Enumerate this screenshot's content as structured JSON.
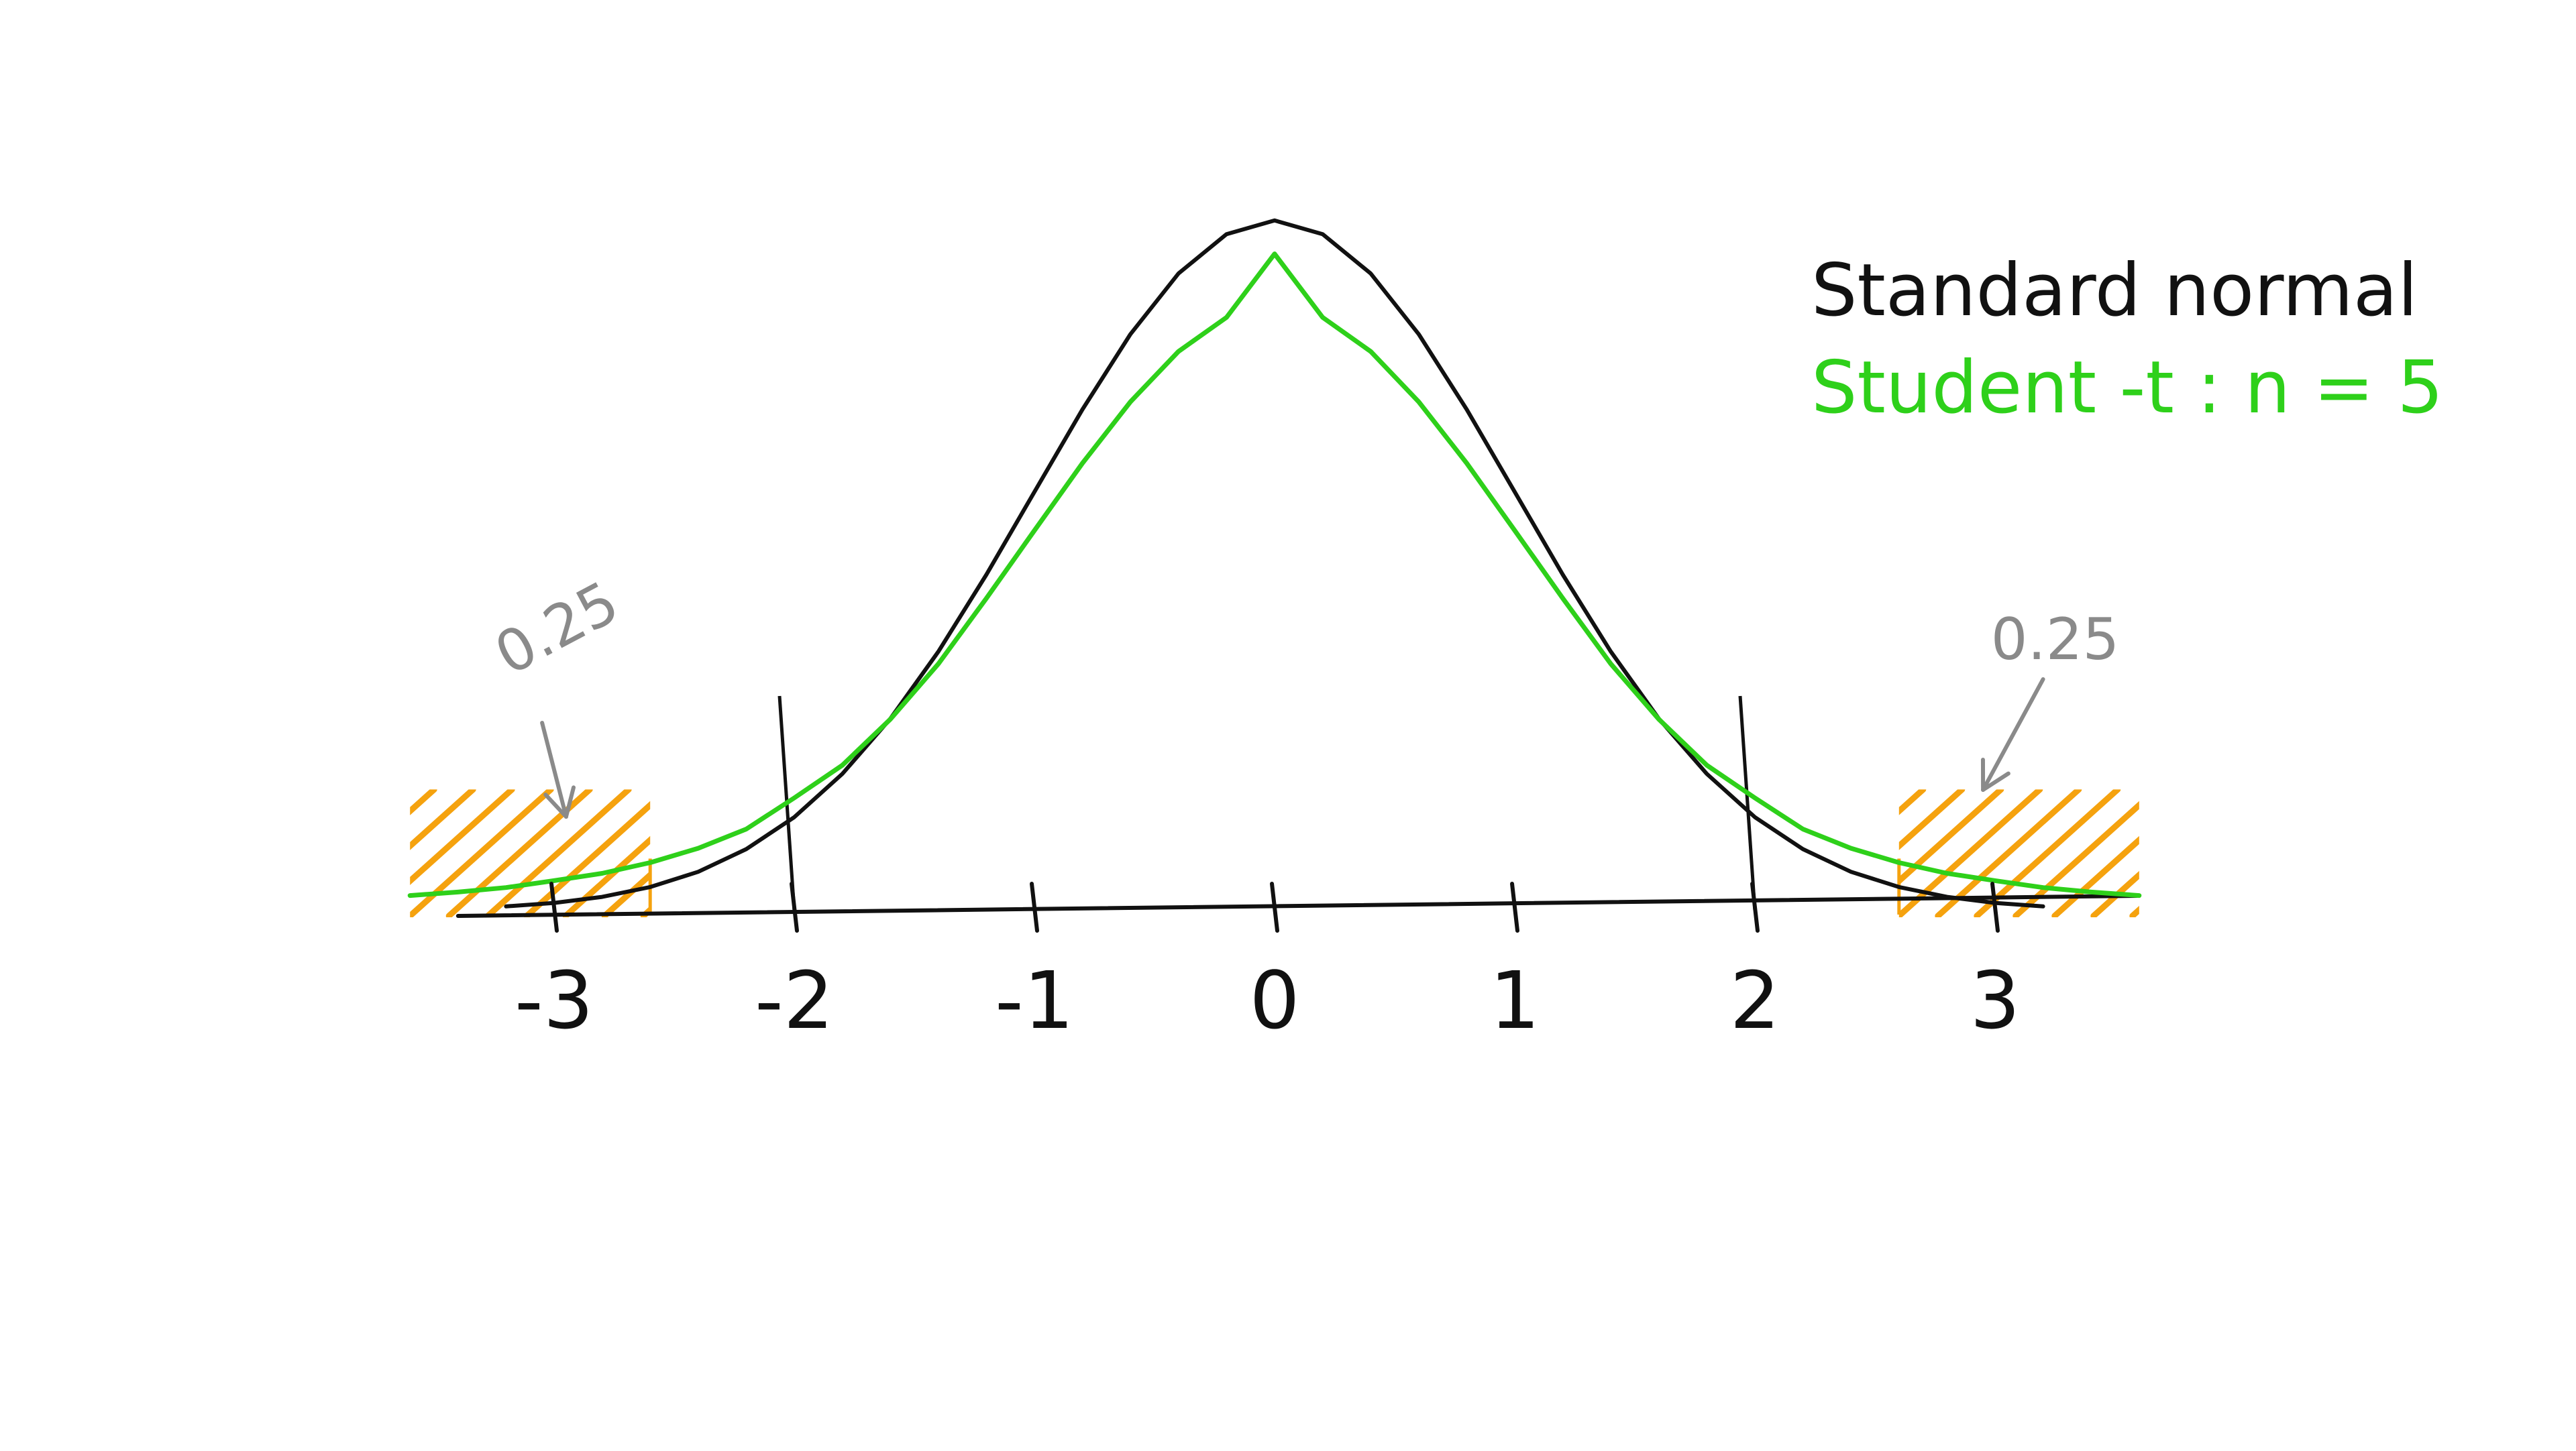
{
  "chart_data": {
    "type": "line",
    "title": "",
    "xlabel": "",
    "ylabel": "",
    "xlim": [
      -3.6,
      3.6
    ],
    "ylim": [
      0,
      0.42
    ],
    "grid": false,
    "legend_placement": "top-right",
    "x_ticks": [
      -3,
      -2,
      -1,
      0,
      1,
      2,
      3
    ],
    "x_tick_labels": [
      "-3",
      "-2",
      "-1",
      "0",
      "1",
      "2",
      "3"
    ],
    "series": [
      {
        "name": "Standard normal",
        "color": "#111111",
        "distribution": "standard normal",
        "x": [
          -3.2,
          -3.0,
          -2.8,
          -2.6,
          -2.4,
          -2.2,
          -2.0,
          -1.8,
          -1.6,
          -1.4,
          -1.2,
          -1.0,
          -0.8,
          -0.6,
          -0.4,
          -0.2,
          0.0,
          0.2,
          0.4,
          0.6,
          0.8,
          1.0,
          1.2,
          1.4,
          1.6,
          1.8,
          2.0,
          2.2,
          2.4,
          2.6,
          2.8,
          3.0,
          3.2
        ],
        "y": [
          0.0024,
          0.0044,
          0.0079,
          0.0136,
          0.0224,
          0.0355,
          0.054,
          0.079,
          0.1109,
          0.1497,
          0.1942,
          0.242,
          0.2897,
          0.3332,
          0.3683,
          0.391,
          0.3989,
          0.391,
          0.3683,
          0.3332,
          0.2897,
          0.242,
          0.1942,
          0.1497,
          0.1109,
          0.079,
          0.054,
          0.0355,
          0.0224,
          0.0136,
          0.0079,
          0.0044,
          0.0024
        ]
      },
      {
        "name": "Student -t : n = 5",
        "color": "#2ed01a",
        "distribution": "t, df = 5",
        "x": [
          -3.6,
          -3.4,
          -3.2,
          -3.0,
          -2.8,
          -2.6,
          -2.4,
          -2.2,
          -2.0,
          -1.8,
          -1.6,
          -1.4,
          -1.2,
          -1.0,
          -0.8,
          -0.6,
          -0.4,
          -0.2,
          0.0,
          0.2,
          0.4,
          0.6,
          0.8,
          1.0,
          1.2,
          1.4,
          1.6,
          1.8,
          2.0,
          2.2,
          2.4,
          2.6,
          2.8,
          3.0,
          3.2,
          3.4,
          3.6
        ],
        "y": [
          0.0087,
          0.0107,
          0.0133,
          0.0173,
          0.0215,
          0.0277,
          0.036,
          0.0471,
          0.0651,
          0.084,
          0.1106,
          0.1426,
          0.1805,
          0.2197,
          0.2586,
          0.2941,
          0.3232,
          0.3429,
          0.3796,
          0.3429,
          0.3232,
          0.2941,
          0.2586,
          0.2197,
          0.1805,
          0.1426,
          0.1106,
          0.084,
          0.0651,
          0.0471,
          0.036,
          0.0277,
          0.0215,
          0.0173,
          0.0133,
          0.0107,
          0.0087
        ]
      }
    ],
    "vertical_lines": [
      {
        "x": -2.0,
        "label": ""
      },
      {
        "x": 2.0,
        "label": ""
      }
    ],
    "shaded_regions": [
      {
        "from": -3.6,
        "to": -2.6,
        "color": "#f5a20e",
        "label": "0.25"
      },
      {
        "from": 2.6,
        "to": 3.6,
        "color": "#f5a20e",
        "label": "0.25"
      }
    ],
    "annotations": [
      {
        "text": "0.25",
        "side": "left"
      },
      {
        "text": "0.25",
        "side": "right"
      }
    ],
    "legend": [
      {
        "text": "Standard normal",
        "color": "#111111"
      },
      {
        "text": "Student -t : n = 5",
        "color": "#2ed01a"
      }
    ]
  }
}
